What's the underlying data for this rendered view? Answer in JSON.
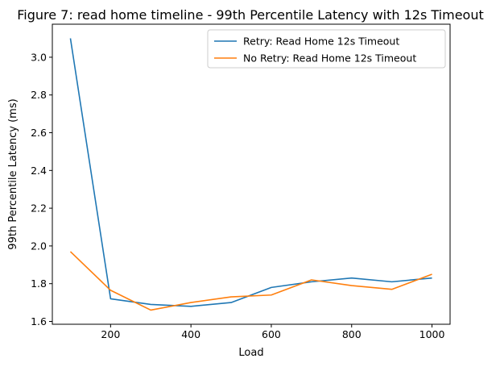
{
  "chart_data": {
    "type": "line",
    "title": "Figure 7: read home timeline - 99th Percentile Latency with 12s Timeout",
    "xlabel": "Load",
    "ylabel": "99th Percentile Latency (ms)",
    "x": [
      100,
      200,
      300,
      400,
      500,
      600,
      700,
      800,
      900,
      1000
    ],
    "xlim": [
      55,
      1045
    ],
    "ylim": [
      1.585,
      3.175
    ],
    "xticks": [
      200,
      400,
      600,
      800,
      1000
    ],
    "yticks": [
      1.6,
      1.8,
      2.0,
      2.2,
      2.4,
      2.6,
      2.8,
      3.0
    ],
    "grid": false,
    "legend_position": "upper-right",
    "series": [
      {
        "name": "Retry: Read Home 12s Timeout",
        "color": "#1f77b4",
        "values": [
          3.1,
          1.72,
          1.69,
          1.68,
          1.7,
          1.78,
          1.81,
          1.83,
          1.81,
          1.83
        ]
      },
      {
        "name": "No Retry: Read Home 12s Timeout",
        "color": "#ff7f0e",
        "values": [
          1.97,
          1.765,
          1.66,
          1.7,
          1.73,
          1.74,
          1.82,
          1.79,
          1.77,
          1.85
        ]
      }
    ]
  }
}
